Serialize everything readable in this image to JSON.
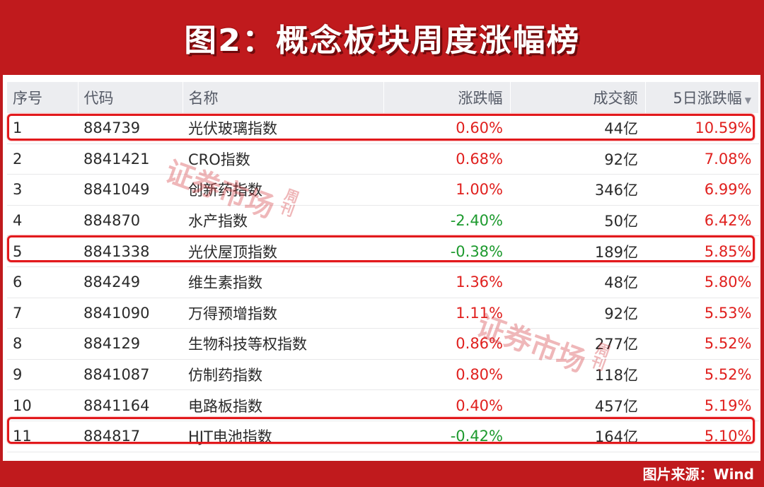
{
  "title": "图2：概念板块周度涨幅榜",
  "watermark": {
    "text": "证券市场",
    "side": "周刊"
  },
  "table": {
    "headers": {
      "seq": "序号",
      "code": "代码",
      "name": "名称",
      "change": "涨跌幅",
      "amount": "成交额",
      "change5d": "5日涨跌幅"
    },
    "rows": [
      {
        "seq": "1",
        "code": "884739",
        "name": "光伏玻璃指数",
        "change": "0.60%",
        "amount": "44亿",
        "change5d": "10.59%"
      },
      {
        "seq": "2",
        "code": "8841421",
        "name": "CRO指数",
        "change": "0.68%",
        "amount": "92亿",
        "change5d": "7.08%"
      },
      {
        "seq": "3",
        "code": "8841049",
        "name": "创新药指数",
        "change": "1.00%",
        "amount": "346亿",
        "change5d": "6.99%"
      },
      {
        "seq": "4",
        "code": "884870",
        "name": "水产指数",
        "change": "-2.40%",
        "amount": "50亿",
        "change5d": "6.42%"
      },
      {
        "seq": "5",
        "code": "8841338",
        "name": "光伏屋顶指数",
        "change": "-0.38%",
        "amount": "189亿",
        "change5d": "5.85%"
      },
      {
        "seq": "6",
        "code": "884249",
        "name": "维生素指数",
        "change": "1.36%",
        "amount": "48亿",
        "change5d": "5.80%"
      },
      {
        "seq": "7",
        "code": "8841090",
        "name": "万得预增指数",
        "change": "1.11%",
        "amount": "92亿",
        "change5d": "5.53%"
      },
      {
        "seq": "8",
        "code": "884129",
        "name": "生物科技等权指数",
        "change": "0.86%",
        "amount": "277亿",
        "change5d": "5.52%"
      },
      {
        "seq": "9",
        "code": "8841087",
        "name": "仿制药指数",
        "change": "0.80%",
        "amount": "118亿",
        "change5d": "5.52%"
      },
      {
        "seq": "10",
        "code": "8841164",
        "name": "电路板指数",
        "change": "0.40%",
        "amount": "457亿",
        "change5d": "5.19%"
      },
      {
        "seq": "11",
        "code": "884817",
        "name": "HJT电池指数",
        "change": "-0.42%",
        "amount": "164亿",
        "change5d": "5.10%"
      }
    ],
    "highlighted_seq": [
      "1",
      "5",
      "11"
    ]
  },
  "source": "图片来源：Wind",
  "colors": {
    "background": "#c01a1d",
    "up": "#e0201e",
    "down": "#1d9a2e",
    "highlight": "#e2191c"
  }
}
